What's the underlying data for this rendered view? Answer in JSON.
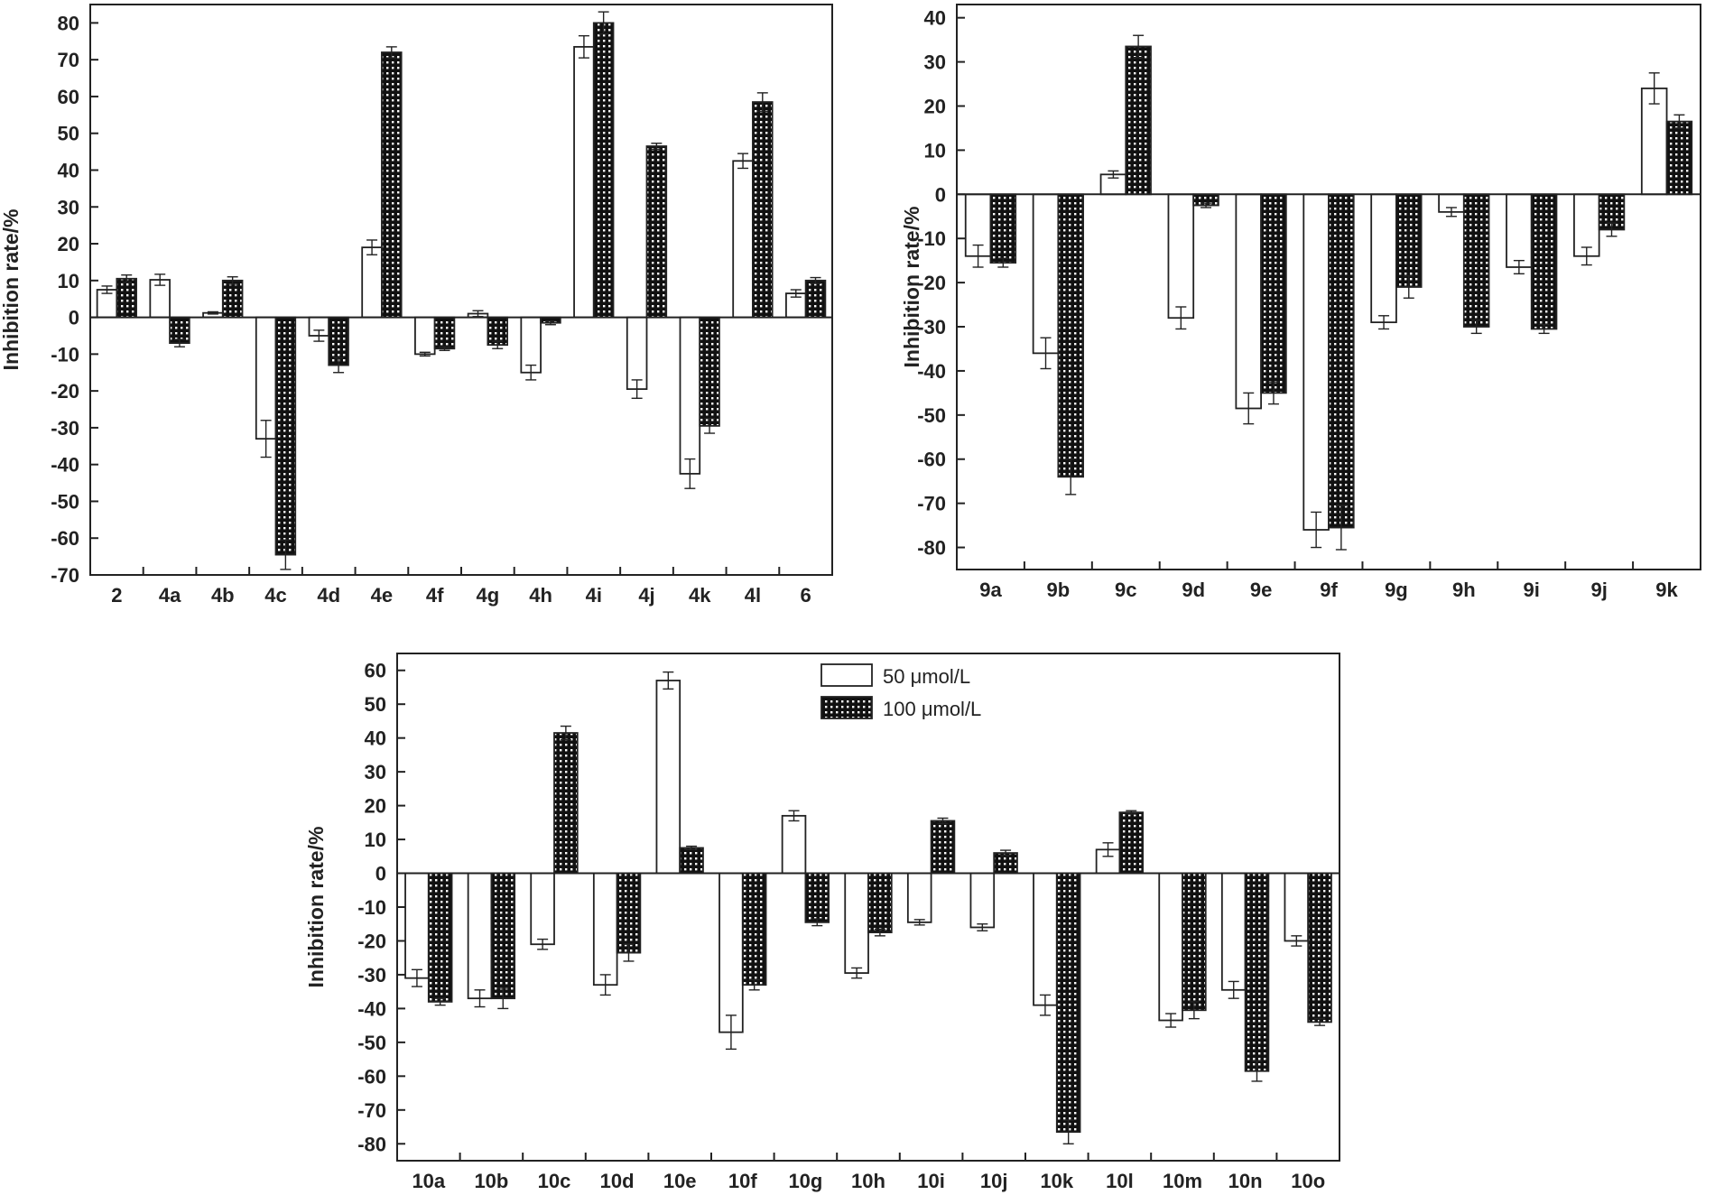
{
  "colors": {
    "frame": "#222222",
    "series_50_fill": "#ffffff",
    "series_100_fill": "#111111",
    "series_100_dots": "#ffffff"
  },
  "chart_data": [
    {
      "id": "panel-a",
      "type": "bar",
      "ylabel": "Inhibition rate/%",
      "ylim": [
        -70,
        85
      ],
      "yticks": [
        80,
        70,
        60,
        50,
        40,
        30,
        20,
        10,
        0,
        -10,
        -20,
        -30,
        -40,
        -50,
        -60,
        -70
      ],
      "categories": [
        "2",
        "4a",
        "4b",
        "4c",
        "4d",
        "4e",
        "4f",
        "4g",
        "4h",
        "4i",
        "4j",
        "4k",
        "4l",
        "6"
      ],
      "series": [
        {
          "name": "50 μmol/L",
          "values": [
            7.5,
            10.2,
            1.2,
            -33,
            -5,
            19,
            -10,
            1,
            -15,
            73.5,
            -19.5,
            -42.5,
            42.5,
            6.5
          ],
          "errors": [
            1,
            1.5,
            0.3,
            5,
            1.5,
            2,
            0.5,
            0.8,
            2,
            3,
            2.5,
            4,
            2,
            1
          ]
        },
        {
          "name": "100 μmol/L",
          "values": [
            10.5,
            -7,
            10,
            -64.5,
            -13,
            72,
            -8.5,
            -7.5,
            -1.5,
            80,
            46.5,
            -29.5,
            58.5,
            10
          ],
          "errors": [
            1,
            1,
            1,
            4,
            2,
            1.5,
            0.5,
            1,
            0.5,
            3,
            0.8,
            2,
            2.5,
            0.8
          ]
        }
      ]
    },
    {
      "id": "panel-b",
      "type": "bar",
      "ylabel": "Inhibition rate/%",
      "ylim": [
        -85,
        43
      ],
      "yticks": [
        40,
        30,
        20,
        10,
        0,
        -10,
        -20,
        -30,
        -40,
        -50,
        -60,
        -70,
        -80
      ],
      "categories": [
        "9a",
        "9b",
        "9c",
        "9d",
        "9e",
        "9f",
        "9g",
        "9h",
        "9i",
        "9j",
        "9k"
      ],
      "series": [
        {
          "name": "50 μmol/L",
          "values": [
            -14,
            -36,
            4.5,
            -28,
            -48.5,
            -76,
            -29,
            -4,
            -16.5,
            -14,
            24
          ],
          "errors": [
            2.5,
            3.5,
            0.8,
            2.5,
            3.5,
            4,
            1.5,
            1,
            1.5,
            2,
            3.5
          ]
        },
        {
          "name": "100 μmol/L",
          "values": [
            -15.5,
            -64,
            33.5,
            -2.5,
            -45,
            -75.5,
            -21,
            -30,
            -30.5,
            -8,
            16.5
          ],
          "errors": [
            1,
            4,
            2.5,
            0.5,
            2.5,
            5,
            2.5,
            1.5,
            1,
            1.5,
            1.5
          ]
        }
      ]
    },
    {
      "id": "panel-c",
      "type": "bar",
      "ylabel": "Inhibition rate/%",
      "ylim": [
        -85,
        65
      ],
      "yticks": [
        60,
        50,
        40,
        30,
        20,
        10,
        0,
        -10,
        -20,
        -30,
        -40,
        -50,
        -60,
        -70,
        -80
      ],
      "categories": [
        "10a",
        "10b",
        "10c",
        "10d",
        "10e",
        "10f",
        "10g",
        "10h",
        "10i",
        "10j",
        "10k",
        "10l",
        "10m",
        "10n",
        "10o"
      ],
      "legend": [
        "50 μmol/L",
        "100 μmol/L"
      ],
      "series": [
        {
          "name": "50 μmol/L",
          "values": [
            -31,
            -37,
            -21,
            -33,
            57,
            -47,
            17,
            -29.5,
            -14.5,
            -16,
            -39,
            7,
            -43.5,
            -34.5,
            -20
          ],
          "errors": [
            2.5,
            2.5,
            1.5,
            3,
            2.5,
            5,
            1.5,
            1.5,
            0.8,
            1,
            3,
            2,
            2,
            2.5,
            1.5
          ]
        },
        {
          "name": "100 μmol/L",
          "values": [
            -38,
            -37,
            41.5,
            -23.5,
            7.5,
            -33,
            -14.5,
            -17.5,
            15.5,
            6,
            -76.5,
            18,
            -40.5,
            -58.5,
            -44
          ],
          "errors": [
            1,
            3,
            2,
            2.5,
            0.5,
            1.5,
            1,
            1,
            0.8,
            0.8,
            3.5,
            0.5,
            2.5,
            3,
            1
          ]
        }
      ]
    }
  ]
}
